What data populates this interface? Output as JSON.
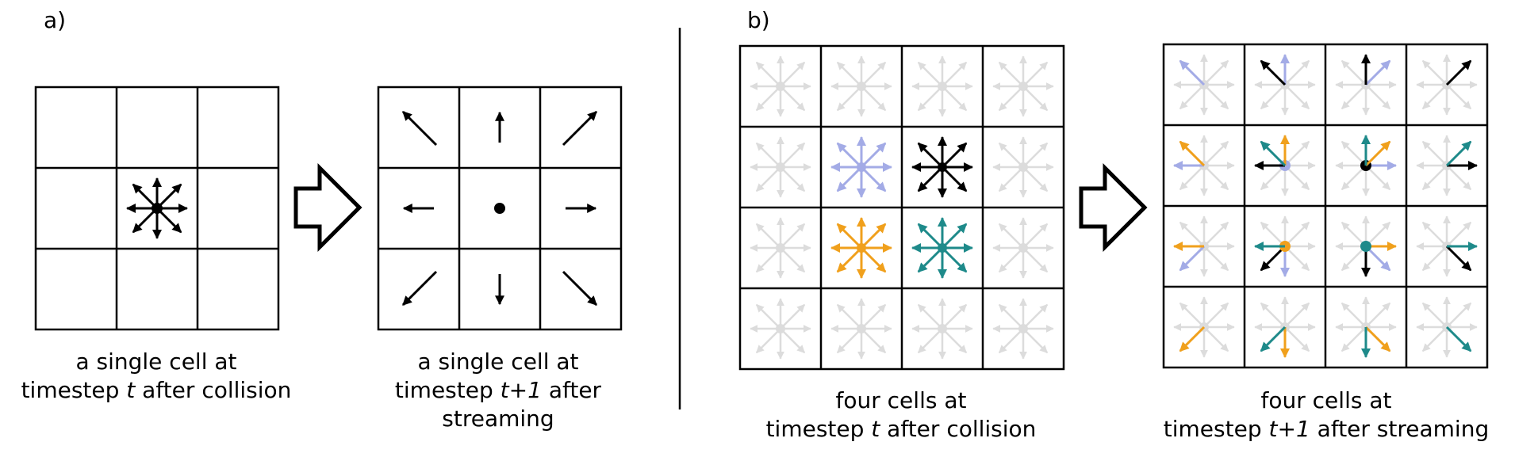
{
  "panel_a": {
    "label": "a)",
    "caption_left": [
      "a single cell at",
      "timestep ",
      "t",
      " after collision"
    ],
    "caption_right": [
      "a single cell at",
      "timestep ",
      "t+1",
      " after",
      "streaming"
    ]
  },
  "panel_b": {
    "label": "b)",
    "caption_left": [
      "four cells at",
      "timestep ",
      "t",
      " after collision"
    ],
    "caption_right": [
      "four cells at",
      "timestep ",
      "t+1",
      " after streaming"
    ]
  },
  "colors": {
    "black": "#000000",
    "ghost": "#dcdcdc",
    "lavender": "#a3abe6",
    "orange": "#f0a01c",
    "teal": "#1e8a8a"
  },
  "stream_colors": {
    "black": "#000000",
    "lavender": "#a3abe6",
    "orange": "#f0a01c",
    "teal": "#1e8a8a"
  }
}
